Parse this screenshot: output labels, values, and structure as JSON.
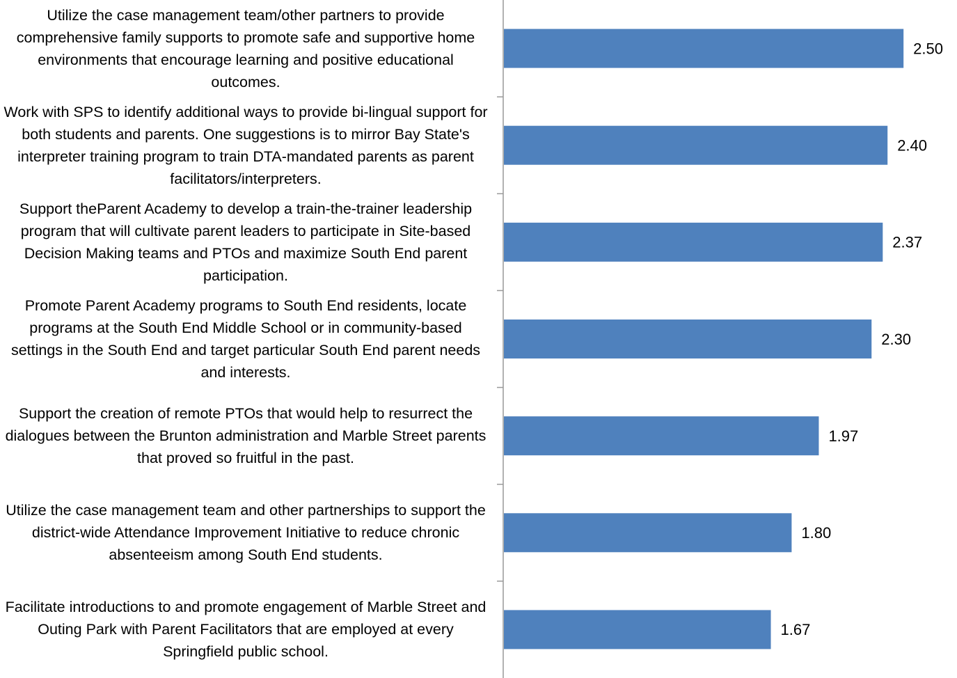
{
  "chart_data": {
    "type": "bar",
    "orientation": "horizontal",
    "categories": [
      "Utilize the case management team/other partners to provide comprehensive family supports to promote safe and supportive home environments that encourage learning and positive educational outcomes.",
      "Work with SPS to identify additional ways to provide bi-lingual support for both students and parents.  One suggestions is to mirror Bay State's interpreter training program to train DTA-mandated parents as parent facilitators/interpreters.",
      "Support theParent Academy to develop a train-the-trainer leadership program that will cultivate parent leaders to participate in Site-based Decision Making teams and PTOs and maximize South End parent participation.",
      "Promote Parent Academy programs to South End residents, locate programs at the South End Middle School or in community-based settings in the South End and target particular South End parent needs and interests.",
      "Support the creation of remote PTOs that would help to resurrect the dialogues between the Brunton administration and Marble Street parents that proved so fruitful in the past.",
      "Utilize the case management team and other partnerships to support the district-wide Attendance Improvement Initiative to reduce chronic absenteeism among South End students.",
      "Facilitate introductions to and promote engagement of Marble Street and Outing Park with Parent Facilitators that are employed at every Springfield public school."
    ],
    "values": [
      2.5,
      2.4,
      2.37,
      2.3,
      1.97,
      1.8,
      1.67
    ],
    "value_labels": [
      "2.50",
      "2.40",
      "2.37",
      "2.30",
      "1.97",
      "1.80",
      "1.67"
    ],
    "color": "#4f81bd",
    "xlim": [
      0,
      3
    ]
  }
}
